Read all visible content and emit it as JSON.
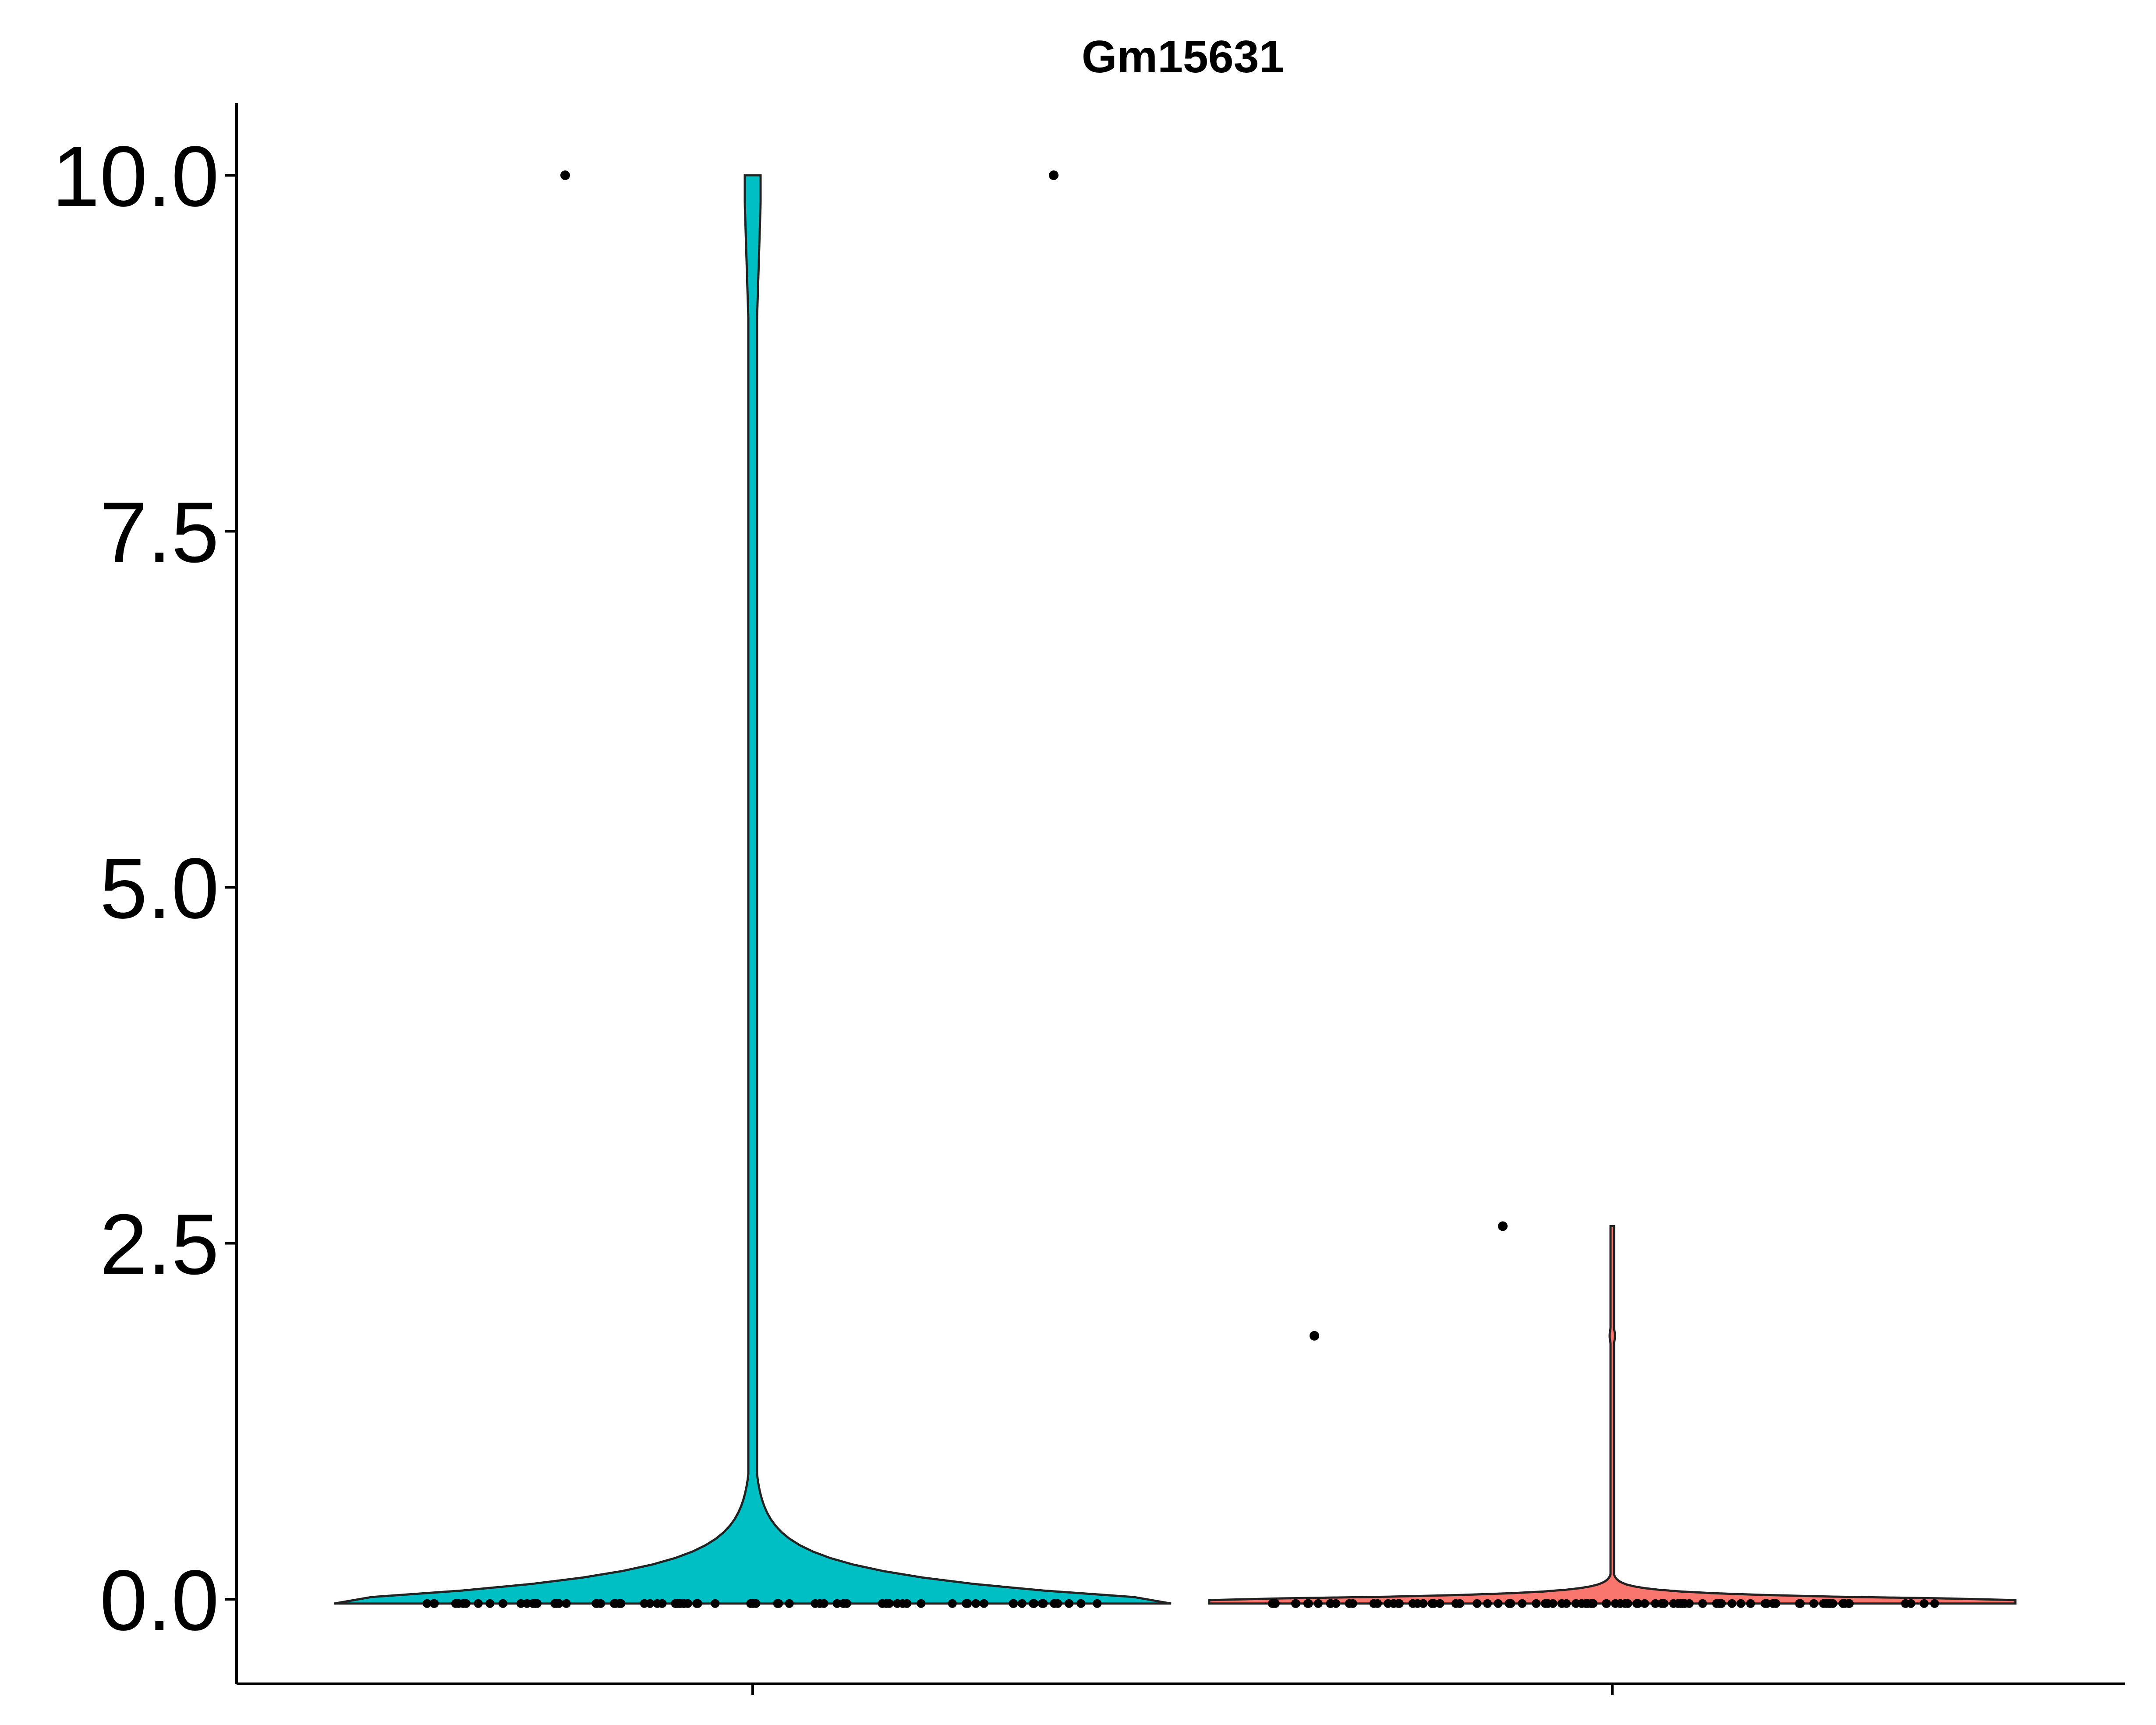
{
  "chart_data": {
    "type": "violin",
    "title": "Gm15631",
    "xlabel": "",
    "ylabel": "",
    "categories": [
      "",
      ""
    ],
    "ylim": [
      -0.6,
      10.5
    ],
    "yticks": [
      "0.0",
      "2.5",
      "5.0",
      "7.5",
      "10.0"
    ],
    "ytick_values": [
      0,
      2.5,
      5,
      7.5,
      10
    ],
    "legend": "none",
    "grid": false,
    "series": [
      {
        "color": "#00BFC4",
        "max": 10.0,
        "outliers": [
          10.0,
          10.0
        ],
        "baseline_points": 80
      },
      {
        "color": "#F8766D",
        "max": 2.62,
        "outliers": [
          1.85,
          2.62
        ],
        "baseline_points": 90
      }
    ]
  }
}
